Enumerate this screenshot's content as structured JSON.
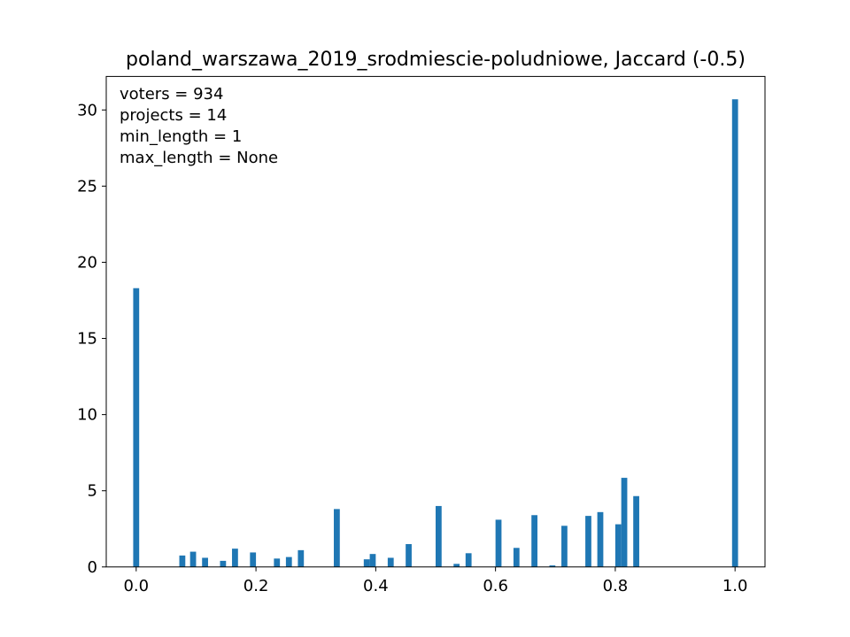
{
  "chart_data": {
    "type": "bar",
    "title": "poland_warszawa_2019_srodmiescie-poludniowe, Jaccard (-0.5)",
    "xlabel": "",
    "ylabel": "",
    "xlim": [
      -0.05,
      1.05
    ],
    "ylim": [
      0,
      32.2
    ],
    "x_ticks": [
      0.0,
      0.2,
      0.4,
      0.6,
      0.8,
      1.0
    ],
    "x_tick_labels": [
      "0.0",
      "0.2",
      "0.4",
      "0.6",
      "0.8",
      "1.0"
    ],
    "y_ticks": [
      0,
      5,
      10,
      15,
      20,
      25,
      30
    ],
    "y_tick_labels": [
      "0",
      "5",
      "10",
      "15",
      "20",
      "25",
      "30"
    ],
    "grid": false,
    "bar_color": "#1f77b4",
    "bin_width": 0.01,
    "annotations": [
      "voters = 934",
      "projects = 14",
      "min_length = 1",
      "max_length = None"
    ],
    "x": [
      0.0,
      0.077,
      0.095,
      0.115,
      0.145,
      0.165,
      0.195,
      0.235,
      0.255,
      0.275,
      0.335,
      0.385,
      0.395,
      0.425,
      0.455,
      0.505,
      0.535,
      0.555,
      0.605,
      0.635,
      0.665,
      0.695,
      0.715,
      0.755,
      0.775,
      0.805,
      0.815,
      0.835,
      1.0
    ],
    "values": [
      18.3,
      0.75,
      1.0,
      0.6,
      0.4,
      1.2,
      0.95,
      0.55,
      0.65,
      1.1,
      3.8,
      0.5,
      0.85,
      0.6,
      1.5,
      4.0,
      0.2,
      0.9,
      3.1,
      1.25,
      3.4,
      0.1,
      2.7,
      3.35,
      3.6,
      2.8,
      5.85,
      4.65,
      30.7
    ]
  }
}
